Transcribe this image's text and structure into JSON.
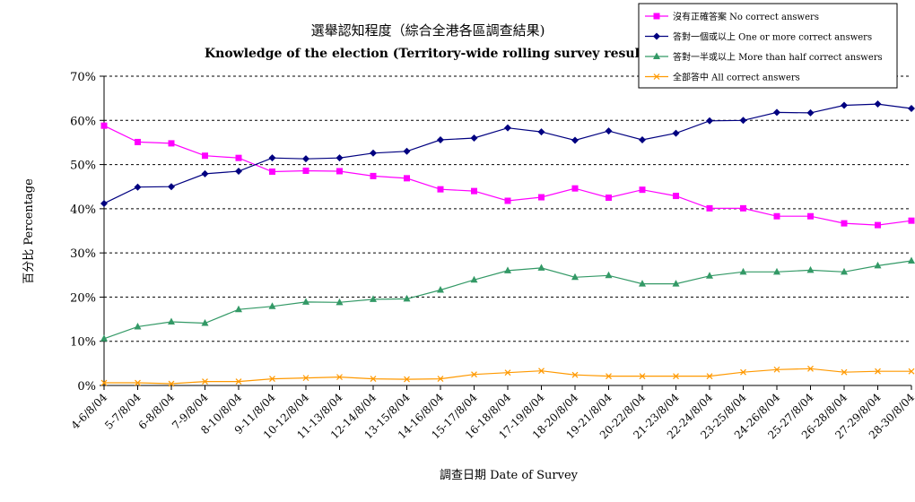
{
  "chart_data": {
    "type": "line",
    "title": "選舉認知程度（綜合全港各區調查結果)",
    "subtitle": "Knowledge of the election (Territory-wide rolling survey result)",
    "xlabel": "調查日期 Date of Survey",
    "ylabel": "百分比 Percentage",
    "ylim": [
      0,
      70
    ],
    "yticks": [
      "0%",
      "10%",
      "20%",
      "30%",
      "40%",
      "50%",
      "60%",
      "70%"
    ],
    "grid": "horizontal dashed",
    "legend_position": "top-right",
    "categories": [
      "4-6/8/04",
      "5-7/8/04",
      "6-8/8/04",
      "7-9/8/04",
      "8-10/8/04",
      "9-11/8/04",
      "10-12/8/04",
      "11-13/8/04",
      "12-14/8/04",
      "13-15/8/04",
      "14-16/8/04",
      "15-17/8/04",
      "16-18/8/04",
      "17-19/8/04",
      "18-20/8/04",
      "19-21/8/04",
      "20-22/8/04",
      "21-23/8/04",
      "22-24/8/04",
      "23-25/8/04",
      "24-26/8/04",
      "25-27/8/04",
      "26-28/8/04",
      "27-29/8/04",
      "28-30/8/04"
    ],
    "series": [
      {
        "name": "沒有正確答案 No correct answers",
        "color": "#ff00ff",
        "marker": "square",
        "values": [
          58.8,
          55.1,
          54.8,
          52.0,
          51.5,
          48.4,
          48.6,
          48.5,
          47.4,
          46.9,
          44.4,
          44.0,
          41.8,
          42.6,
          44.6,
          42.5,
          44.3,
          42.9,
          40.1,
          40.1,
          38.3,
          38.3,
          36.7,
          36.3,
          37.3
        ]
      },
      {
        "name": "答對一個或以上 One or more correct answers",
        "color": "#000080",
        "marker": "diamond",
        "values": [
          41.2,
          44.9,
          45.0,
          47.9,
          48.5,
          51.5,
          51.3,
          51.5,
          52.6,
          53.0,
          55.6,
          56.0,
          58.3,
          57.4,
          55.5,
          57.6,
          55.6,
          57.1,
          59.9,
          60.0,
          61.8,
          61.7,
          63.4,
          63.7,
          62.7
        ]
      },
      {
        "name": "答對一半或以上 More than half correct answers",
        "color": "#339966",
        "marker": "triangle",
        "values": [
          10.6,
          13.3,
          14.4,
          14.1,
          17.2,
          17.9,
          18.9,
          18.8,
          19.5,
          19.6,
          21.6,
          23.9,
          26.0,
          26.6,
          24.5,
          24.9,
          23.0,
          23.0,
          24.8,
          25.7,
          25.7,
          26.1,
          25.7,
          27.1,
          28.2
        ]
      },
      {
        "name": "全部答中 All correct answers",
        "color": "#ff9900",
        "marker": "x",
        "values": [
          0.6,
          0.6,
          0.4,
          0.9,
          0.9,
          1.5,
          1.7,
          1.9,
          1.5,
          1.4,
          1.5,
          2.5,
          2.9,
          3.3,
          2.4,
          2.1,
          2.1,
          2.1,
          2.1,
          3.0,
          3.6,
          3.8,
          3.0,
          3.2,
          3.2
        ]
      }
    ]
  }
}
